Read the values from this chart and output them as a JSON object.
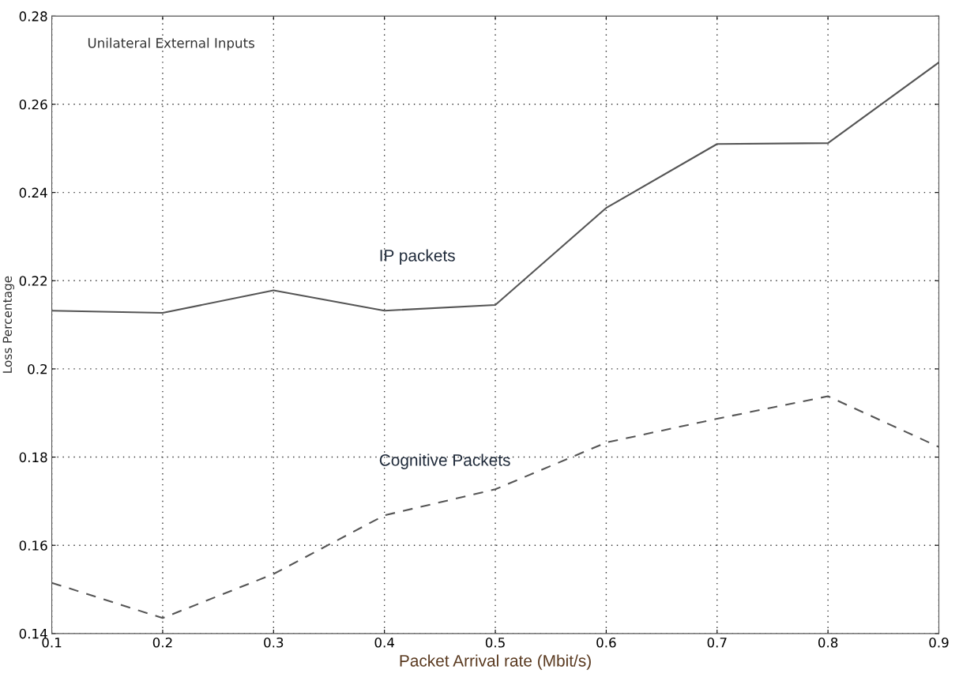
{
  "chart_data": {
    "type": "line",
    "title": "Unilateral External Inputs",
    "xlabel": "Packet Arrival rate (Mbit/s)",
    "ylabel": "Loss Percentage",
    "x": [
      0.1,
      0.2,
      0.3,
      0.4,
      0.5,
      0.6,
      0.7,
      0.8,
      0.9
    ],
    "series": [
      {
        "name": "IP packets",
        "color": "#555555",
        "line_style": "solid",
        "values": [
          0.2132,
          0.2127,
          0.2178,
          0.2132,
          0.2145,
          0.2365,
          0.251,
          0.2512,
          0.2695
        ]
      },
      {
        "name": "Cognitive Packets",
        "color": "#555555",
        "line_style": "dashed",
        "values": [
          0.1515,
          0.1435,
          0.1535,
          0.1668,
          0.1727,
          0.1833,
          0.1887,
          0.1938,
          0.1823
        ]
      }
    ],
    "xlim": [
      0.1,
      0.9
    ],
    "xticks": [
      0.1,
      0.2,
      0.3,
      0.4,
      0.5,
      0.6,
      0.7,
      0.8,
      0.9
    ],
    "ylim": [
      0.14,
      0.28
    ],
    "yticks": [
      0.14,
      0.16,
      0.18,
      0.2,
      0.22,
      0.24,
      0.26,
      0.28
    ],
    "grid": true,
    "legend": false
  }
}
